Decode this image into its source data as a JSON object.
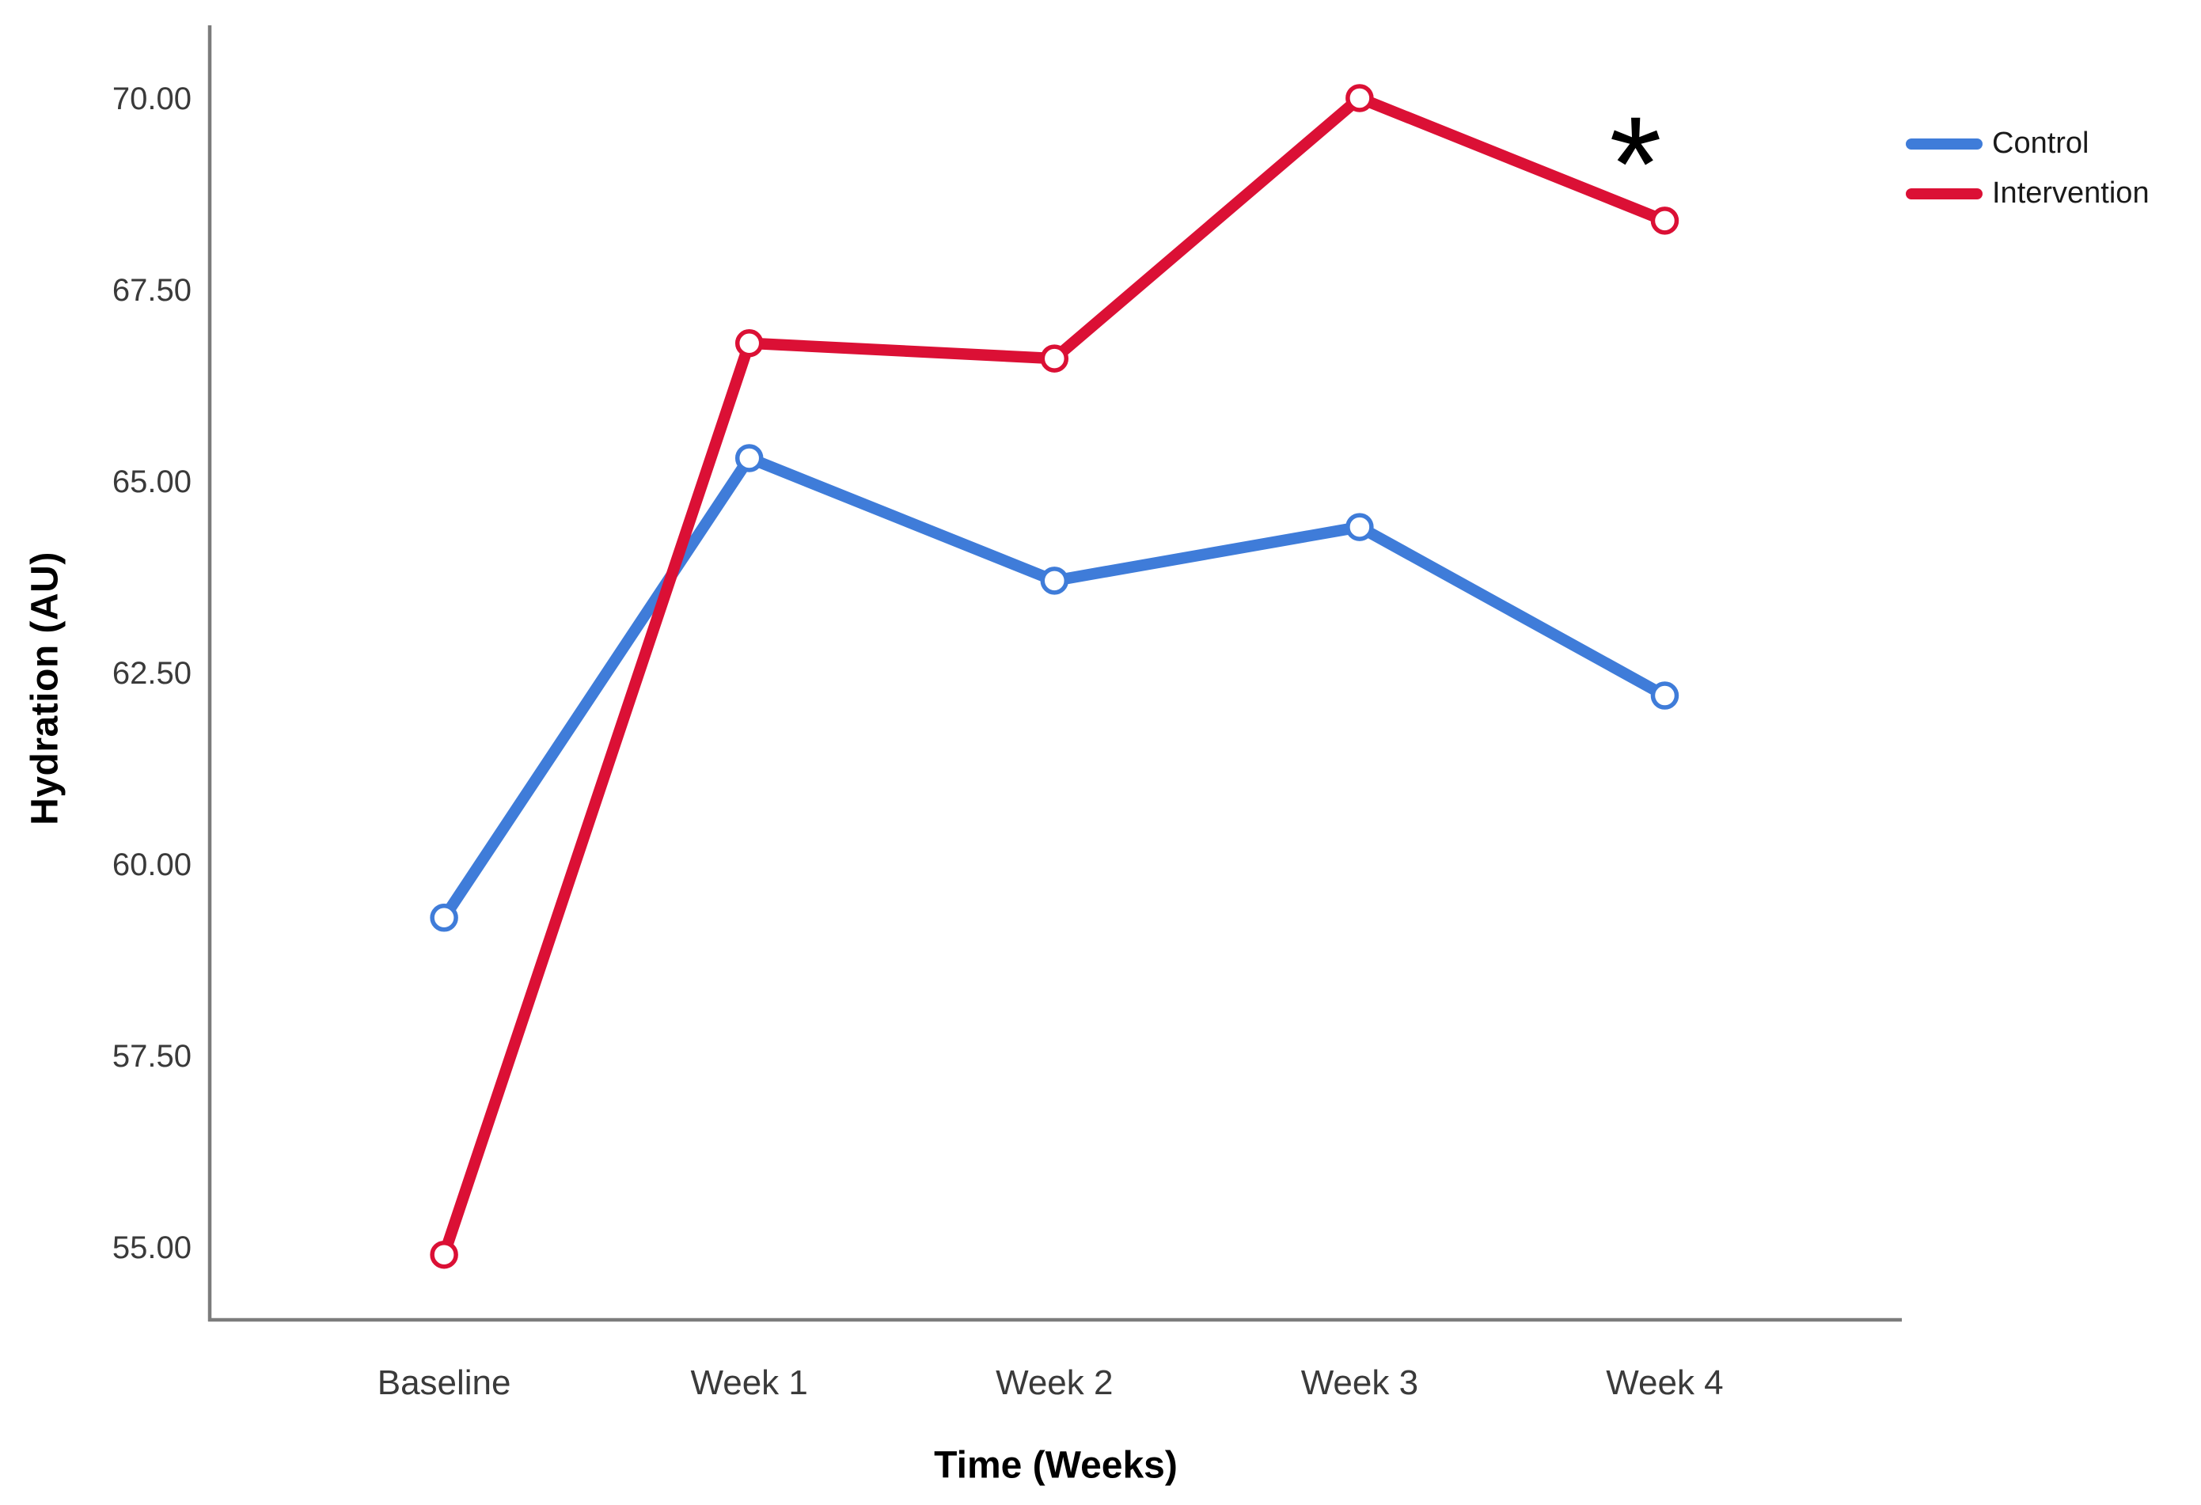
{
  "figure": {
    "background": "#ffffff",
    "axis_line_color": "#7c7c7c",
    "tick_text_color": "#3a3a3a",
    "title_text_color": "#000000"
  },
  "chart_data": {
    "type": "line",
    "title": "",
    "xlabel": "Time (Weeks)",
    "ylabel": "Hydration (AU)",
    "categories": [
      "Baseline",
      "Week 1",
      "Week 2",
      "Week 3",
      "Week 4"
    ],
    "series": [
      {
        "name": "Control",
        "color": "#3F7CD9",
        "values": [
          59.3,
          65.3,
          63.7,
          64.4,
          62.2
        ]
      },
      {
        "name": "Intervention",
        "color": "#DB1035",
        "values": [
          54.9,
          66.8,
          66.6,
          70.0,
          68.4
        ]
      }
    ],
    "yticks": [
      55.0,
      57.5,
      60.0,
      62.5,
      65.0,
      67.5,
      70.0
    ],
    "ytick_labels": [
      "55.00",
      "57.50",
      "60.00",
      "62.50",
      "65.00",
      "67.50",
      "70.00"
    ],
    "ylim": [
      54.05,
      70.95
    ],
    "grid": false,
    "marker": "open-circle",
    "legend_position": "outside-top-right",
    "annotation": {
      "text": "*",
      "series": "Intervention",
      "category": "Week 4",
      "value": 69.3
    }
  }
}
